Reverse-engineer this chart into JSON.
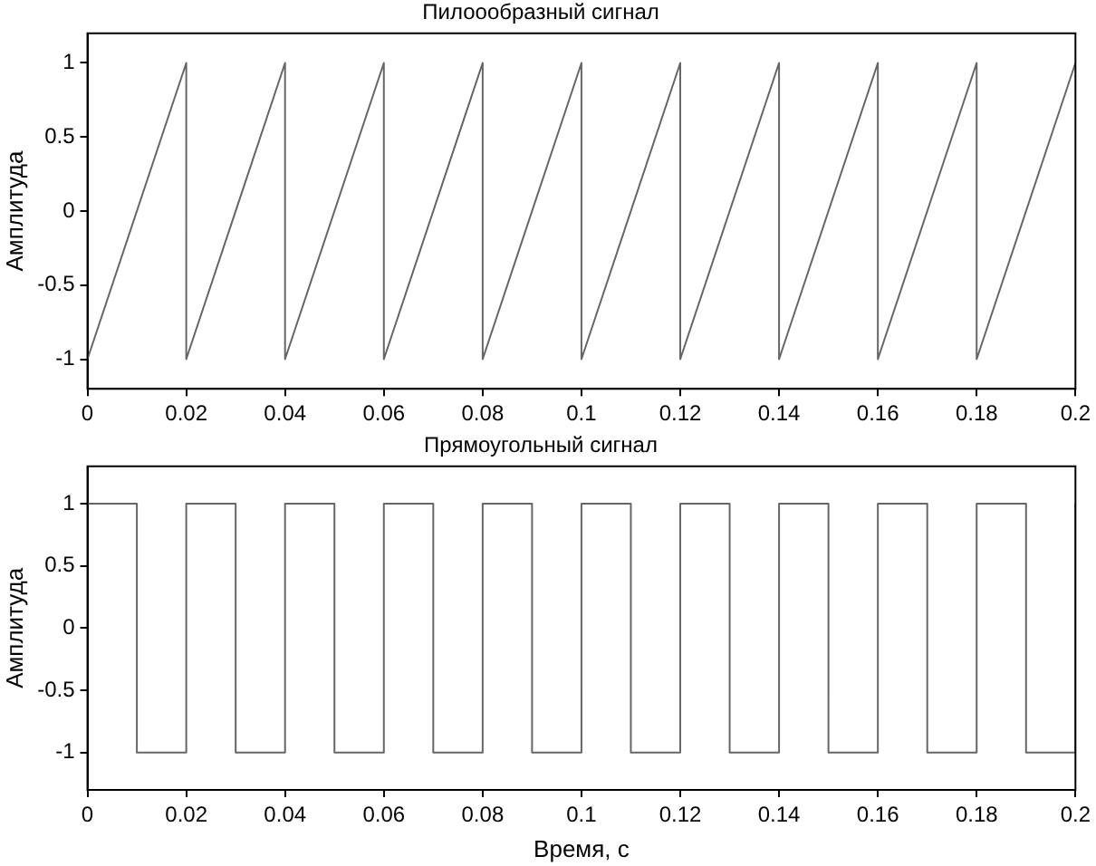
{
  "chart_data": [
    {
      "type": "line",
      "title": "Пилоообразный сигнал",
      "ylabel": "Амплитуда",
      "xlim": [
        0,
        0.2
      ],
      "xticks": [
        0,
        0.02,
        0.04,
        0.06,
        0.08,
        0.1,
        0.12,
        0.14,
        0.16,
        0.18,
        0.2
      ],
      "ylim": [
        -1.2,
        1.2
      ],
      "yticks": [
        -1,
        -0.5,
        0,
        0.5,
        1
      ],
      "grid": false,
      "legend": false,
      "marker": "none",
      "series": [
        {
          "color": "#666666",
          "x": [
            0,
            0.02,
            0.02,
            0.04,
            0.04,
            0.06,
            0.06,
            0.08,
            0.08,
            0.1,
            0.1,
            0.12,
            0.12,
            0.14,
            0.14,
            0.16,
            0.16,
            0.18,
            0.18,
            0.2
          ],
          "values": [
            -1,
            1,
            -1,
            1,
            -1,
            1,
            -1,
            1,
            -1,
            1,
            -1,
            1,
            -1,
            1,
            -1,
            1,
            -1,
            1,
            -1,
            1
          ]
        }
      ]
    },
    {
      "type": "step",
      "title": "Прямоугольный сигнал",
      "xlabel": "Время, с",
      "ylabel": "Амплитуда",
      "xlim": [
        0,
        0.2
      ],
      "xticks": [
        0,
        0.02,
        0.04,
        0.06,
        0.08,
        0.1,
        0.12,
        0.14,
        0.16,
        0.18,
        0.2
      ],
      "ylim": [
        -1.3,
        1.3
      ],
      "yticks": [
        -1,
        -0.5,
        0,
        0.5,
        1
      ],
      "grid": false,
      "legend": false,
      "marker": "none",
      "series": [
        {
          "color": "#666666",
          "x": [
            0,
            0.01,
            0.02,
            0.03,
            0.04,
            0.05,
            0.06,
            0.07,
            0.08,
            0.09,
            0.1,
            0.11,
            0.12,
            0.13,
            0.14,
            0.15,
            0.16,
            0.17,
            0.18,
            0.19,
            0.2
          ],
          "values": [
            1,
            -1,
            1,
            -1,
            1,
            -1,
            1,
            -1,
            1,
            -1,
            1,
            -1,
            1,
            -1,
            1,
            -1,
            1,
            -1,
            1,
            -1,
            1
          ]
        }
      ]
    }
  ]
}
